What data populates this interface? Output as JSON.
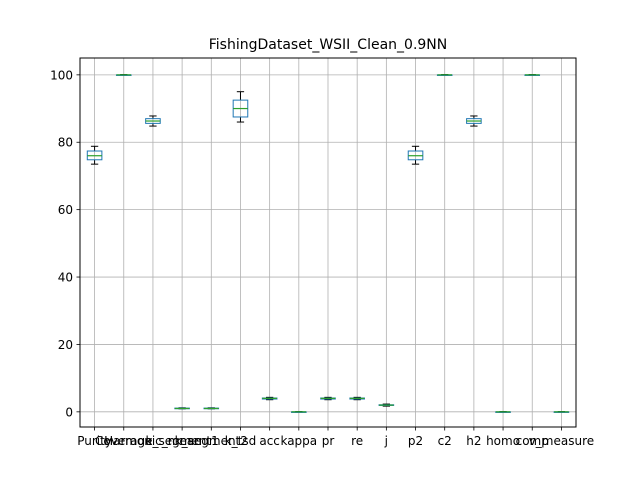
{
  "chart_data": {
    "type": "box",
    "title": "FishingDataset_WSII_Clean_0.9NN",
    "xlabel": "",
    "ylabel": "",
    "ylim": [
      -4.5,
      105
    ],
    "yticks": [
      0,
      20,
      40,
      60,
      80,
      100
    ],
    "grid": true,
    "categories": [
      "Purity",
      "Coverage",
      "Harmonic_mean",
      "k_segment1",
      "k_segment2",
      "k_tsd",
      "acc",
      "kappa",
      "pr",
      "re",
      "j",
      "p2",
      "c2",
      "h2",
      "homo",
      "comp",
      "v_measure"
    ],
    "boxes": [
      {
        "min": 73.5,
        "q1": 74.8,
        "median": 76.0,
        "q3": 77.4,
        "max": 78.8
      },
      {
        "min": 99.9,
        "q1": 100.0,
        "median": 100.0,
        "q3": 100.0,
        "max": 100.1
      },
      {
        "min": 84.8,
        "q1": 85.6,
        "median": 86.3,
        "q3": 87.0,
        "max": 87.8
      },
      {
        "min": 0.9,
        "q1": 1.0,
        "median": 1.0,
        "q3": 1.1,
        "max": 1.2
      },
      {
        "min": 0.9,
        "q1": 1.0,
        "median": 1.0,
        "q3": 1.1,
        "max": 1.2
      },
      {
        "min": 86.0,
        "q1": 87.5,
        "median": 90.0,
        "q3": 92.5,
        "max": 95.0
      },
      {
        "min": 3.6,
        "q1": 3.8,
        "median": 4.0,
        "q3": 4.1,
        "max": 4.3
      },
      {
        "min": -0.1,
        "q1": 0.0,
        "median": 0.0,
        "q3": 0.0,
        "max": 0.1
      },
      {
        "min": 3.6,
        "q1": 3.8,
        "median": 4.0,
        "q3": 4.1,
        "max": 4.3
      },
      {
        "min": 3.6,
        "q1": 3.8,
        "median": 4.0,
        "q3": 4.1,
        "max": 4.3
      },
      {
        "min": 1.7,
        "q1": 1.9,
        "median": 2.0,
        "q3": 2.1,
        "max": 2.3
      },
      {
        "min": 73.5,
        "q1": 74.8,
        "median": 76.0,
        "q3": 77.4,
        "max": 78.8
      },
      {
        "min": 99.9,
        "q1": 100.0,
        "median": 100.0,
        "q3": 100.0,
        "max": 100.1
      },
      {
        "min": 84.8,
        "q1": 85.6,
        "median": 86.3,
        "q3": 87.0,
        "max": 87.8
      },
      {
        "min": -0.1,
        "q1": 0.0,
        "median": 0.0,
        "q3": 0.0,
        "max": 0.1
      },
      {
        "min": 99.9,
        "q1": 100.0,
        "median": 100.0,
        "q3": 100.0,
        "max": 100.1
      },
      {
        "min": -0.1,
        "q1": 0.0,
        "median": 0.0,
        "q3": 0.0,
        "max": 0.1
      }
    ],
    "colors": {
      "box": "#1f77b4",
      "median": "#2ca02c",
      "whisker": "#000000",
      "grid": "#b0b0b0"
    }
  }
}
